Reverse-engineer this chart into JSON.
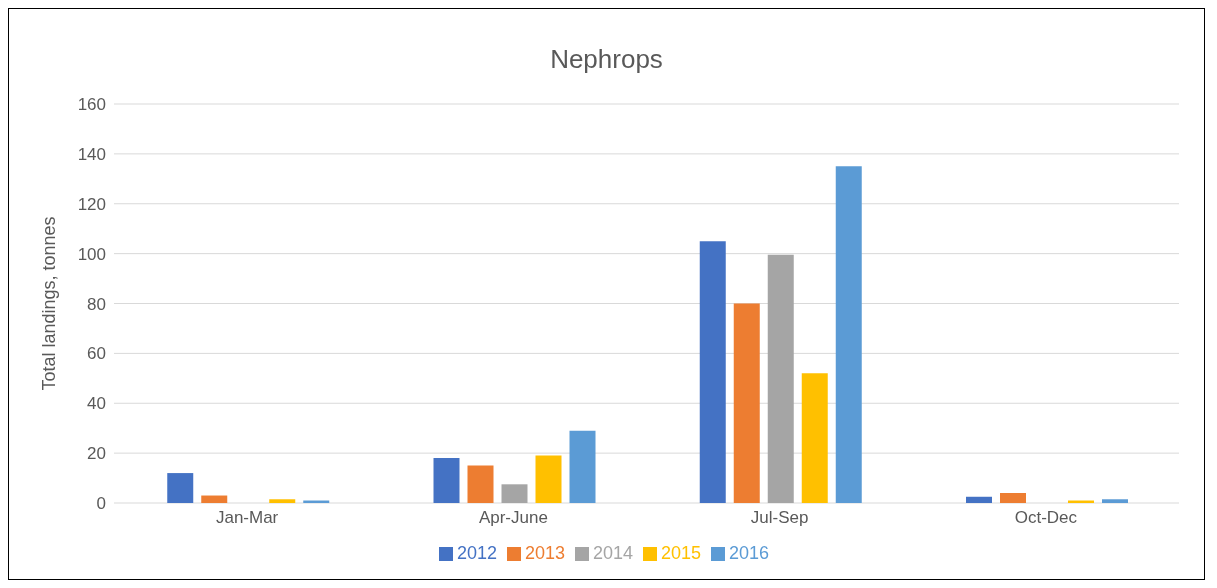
{
  "chart_data": {
    "type": "bar",
    "title": "Nephrops",
    "ylabel": "Total landings, tonnes",
    "categories": [
      "Jan-Mar",
      "Apr-June",
      "Jul-Sep",
      "Oct-Dec"
    ],
    "series": [
      {
        "name": "2012",
        "color": "#4472c4",
        "values": [
          12,
          18,
          105,
          2.5
        ]
      },
      {
        "name": "2013",
        "color": "#ed7d31",
        "values": [
          3,
          15,
          80,
          4
        ]
      },
      {
        "name": "2014",
        "color": "#a5a5a5",
        "values": [
          null,
          7.5,
          99.5,
          null
        ]
      },
      {
        "name": "2015",
        "color": "#ffc000",
        "values": [
          1.5,
          19,
          52,
          1
        ]
      },
      {
        "name": "2016",
        "color": "#5b9bd5",
        "values": [
          1,
          29,
          135,
          1.5
        ]
      }
    ],
    "ylim": [
      0,
      160
    ],
    "yticks": [
      0,
      20,
      40,
      60,
      80,
      100,
      120,
      140,
      160
    ],
    "grid": "y",
    "legend": "bottom"
  }
}
